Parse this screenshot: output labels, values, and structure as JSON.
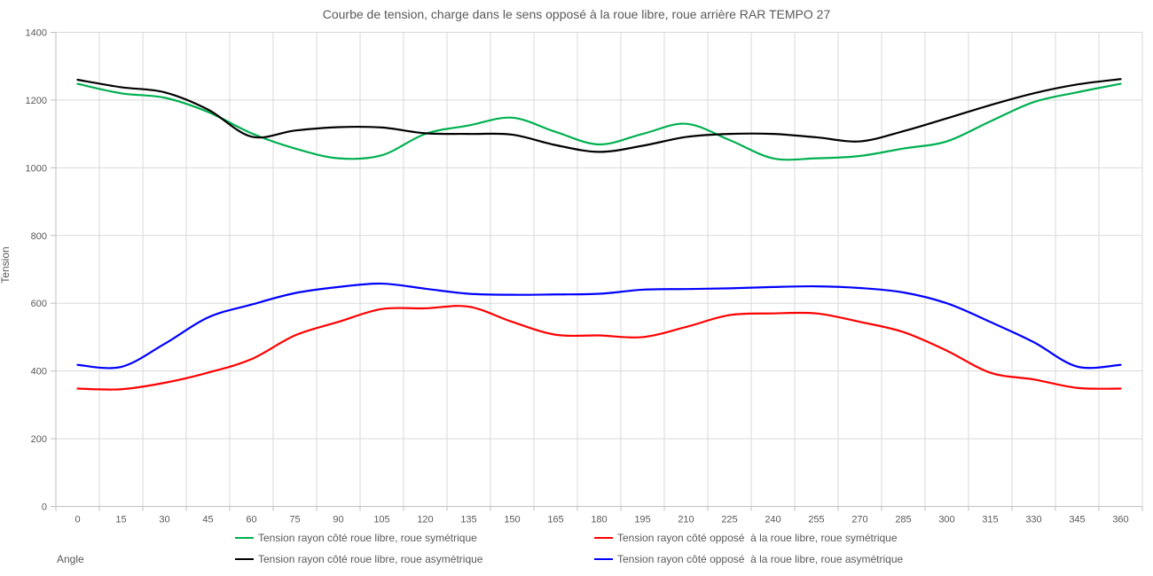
{
  "title": "Courbe de tension, charge dans le sens opposé à la roue libre, roue arrière RAR TEMPO 27",
  "axes": {
    "y_label": "Tension",
    "x_label": "Angle"
  },
  "chart_data": {
    "type": "line",
    "x": [
      0,
      15,
      30,
      45,
      60,
      75,
      90,
      105,
      120,
      135,
      150,
      165,
      180,
      195,
      210,
      225,
      240,
      255,
      270,
      285,
      300,
      315,
      330,
      345,
      360
    ],
    "ylim": [
      0,
      1400
    ],
    "yticks": [
      0,
      200,
      400,
      600,
      800,
      1000,
      1200,
      1400
    ],
    "grid": true,
    "legend_position": "bottom",
    "colors": {
      "gridline": "#D9D9D9",
      "axis": "#BFBFBF",
      "text": "#595959"
    },
    "series": [
      {
        "name": "Tension rayon côté roue libre, roue symétrique",
        "color": "#00B050",
        "values": [
          1248,
          1220,
          1207,
          1165,
          1102,
          1057,
          1028,
          1037,
          1100,
          1125,
          1148,
          1106,
          1069,
          1100,
          1130,
          1082,
          1028,
          1028,
          1035,
          1057,
          1078,
          1137,
          1194,
          1223,
          1248
        ]
      },
      {
        "name": "Tension rayon côté opposé  à la roue libre, roue symétrique",
        "color": "#FF0000",
        "values": [
          348,
          346,
          365,
          395,
          435,
          505,
          545,
          583,
          585,
          590,
          545,
          507,
          505,
          500,
          530,
          565,
          570,
          570,
          545,
          515,
          460,
          395,
          375,
          350,
          348
        ]
      },
      {
        "name": "Tension rayon côté roue libre, roue asymétrique",
        "color": "#000000",
        "values": [
          1260,
          1238,
          1223,
          1172,
          1092,
          1110,
          1120,
          1119,
          1102,
          1100,
          1098,
          1067,
          1047,
          1065,
          1091,
          1100,
          1100,
          1090,
          1078,
          1108,
          1146,
          1185,
          1220,
          1246,
          1262
        ]
      },
      {
        "name": "Tension rayon côté opposé  à la roue libre, roue asymétrique",
        "color": "#0000FF",
        "values": [
          418,
          412,
          480,
          558,
          596,
          630,
          648,
          658,
          643,
          628,
          625,
          626,
          628,
          640,
          642,
          644,
          648,
          650,
          645,
          632,
          600,
          545,
          485,
          413,
          418
        ]
      }
    ]
  }
}
